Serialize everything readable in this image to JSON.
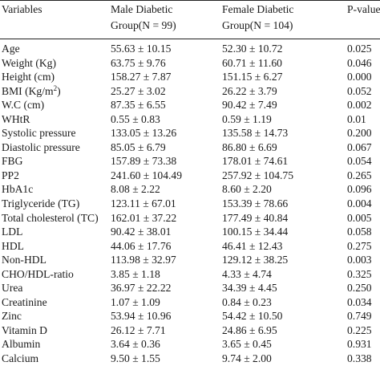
{
  "header": {
    "variables": "Variables",
    "male_line1": "Male Diabetic",
    "male_line2": "Group(N = 99)",
    "female_line1": "Female Diabetic",
    "female_line2": "Group(N = 104)",
    "pvalue": "P-value"
  },
  "rows": [
    {
      "variable": "Age",
      "male": "55.63 ± 10.15",
      "female": "52.30 ± 10.72",
      "p": "0.025"
    },
    {
      "variable": "Weight (Kg)",
      "male": "63.75 ± 9.76",
      "female": "60.71 ± 11.60",
      "p": "0.046"
    },
    {
      "variable": "Height (cm)",
      "male": "158.27 ± 7.87",
      "female": "151.15 ± 6.27",
      "p": "0.000"
    },
    {
      "variable": "BMI (Kg/m",
      "variable_sup": "2",
      "variable_after": ")",
      "male": "25.27 ± 3.02",
      "female": "26.22 ± 3.79",
      "p": "0.052"
    },
    {
      "variable": "W.C (cm)",
      "male": "87.35 ± 6.55",
      "female": "90.42 ± 7.49",
      "p": "0.002"
    },
    {
      "variable": "WHtR",
      "male": "0.55 ± 0.83",
      "female": "0.59 ± 1.19",
      "p": "0.01"
    },
    {
      "variable": "Systolic pressure",
      "male": "133.05 ± 13.26",
      "female": "135.58 ± 14.73",
      "p": "0.200"
    },
    {
      "variable": "Diastolic pressure",
      "male": "85.05 ± 6.79",
      "female": "86.80 ± 6.69",
      "p": "0.067"
    },
    {
      "variable": "FBG",
      "male": "157.89 ± 73.38",
      "female": "178.01 ± 74.61",
      "p": "0.054"
    },
    {
      "variable": "PP2",
      "male": "241.60 ± 104.49",
      "female": "257.92 ± 104.75",
      "p": "0.265"
    },
    {
      "variable": "HbA1c",
      "male": "8.08 ± 2.22",
      "female": "8.60 ± 2.20",
      "p": "0.096"
    },
    {
      "variable": "Triglyceride (TG)",
      "male": "123.11 ± 67.01",
      "female": "153.39 ± 78.66",
      "p": "0.004"
    },
    {
      "variable": "Total cholesterol (TC)",
      "male": "162.01 ± 37.22",
      "female": "177.49 ± 40.84",
      "p": "0.005"
    },
    {
      "variable": "LDL",
      "male": "90.42 ± 38.01",
      "female": "100.15 ± 34.44",
      "p": "0.058"
    },
    {
      "variable": "HDL",
      "male": "44.06 ± 17.76",
      "female": "46.41 ± 12.43",
      "p": "0.275"
    },
    {
      "variable": "Non-HDL",
      "male": "113.98 ± 32.97",
      "female": "129.12 ± 38.25",
      "p": "0.003"
    },
    {
      "variable": "CHO/HDL-ratio",
      "male": "3.85 ± 1.18",
      "female": "4.33 ± 4.74",
      "p": "0.325"
    },
    {
      "variable": "Urea",
      "male": "36.97 ± 22.22",
      "female": "34.39 ± 4.45",
      "p": "0.250"
    },
    {
      "variable": "Creatinine",
      "male": "1.07 ± 1.09",
      "female": "0.84 ± 0.23",
      "p": "0.034"
    },
    {
      "variable": "Zinc",
      "male": "53.94 ± 10.96",
      "female": "54.42 ± 10.50",
      "p": "0.749"
    },
    {
      "variable": "Vitamin D",
      "male": "26.12 ± 7.71",
      "female": "24.86 ± 6.95",
      "p": "0.225"
    },
    {
      "variable": "Albumin",
      "male": "3.64 ± 0.36",
      "female": "3.65 ± 0.45",
      "p": "0.931"
    },
    {
      "variable": "Calcium",
      "male": "9.50 ± 1.55",
      "female": "9.74 ± 2.00",
      "p": "0.338"
    }
  ]
}
